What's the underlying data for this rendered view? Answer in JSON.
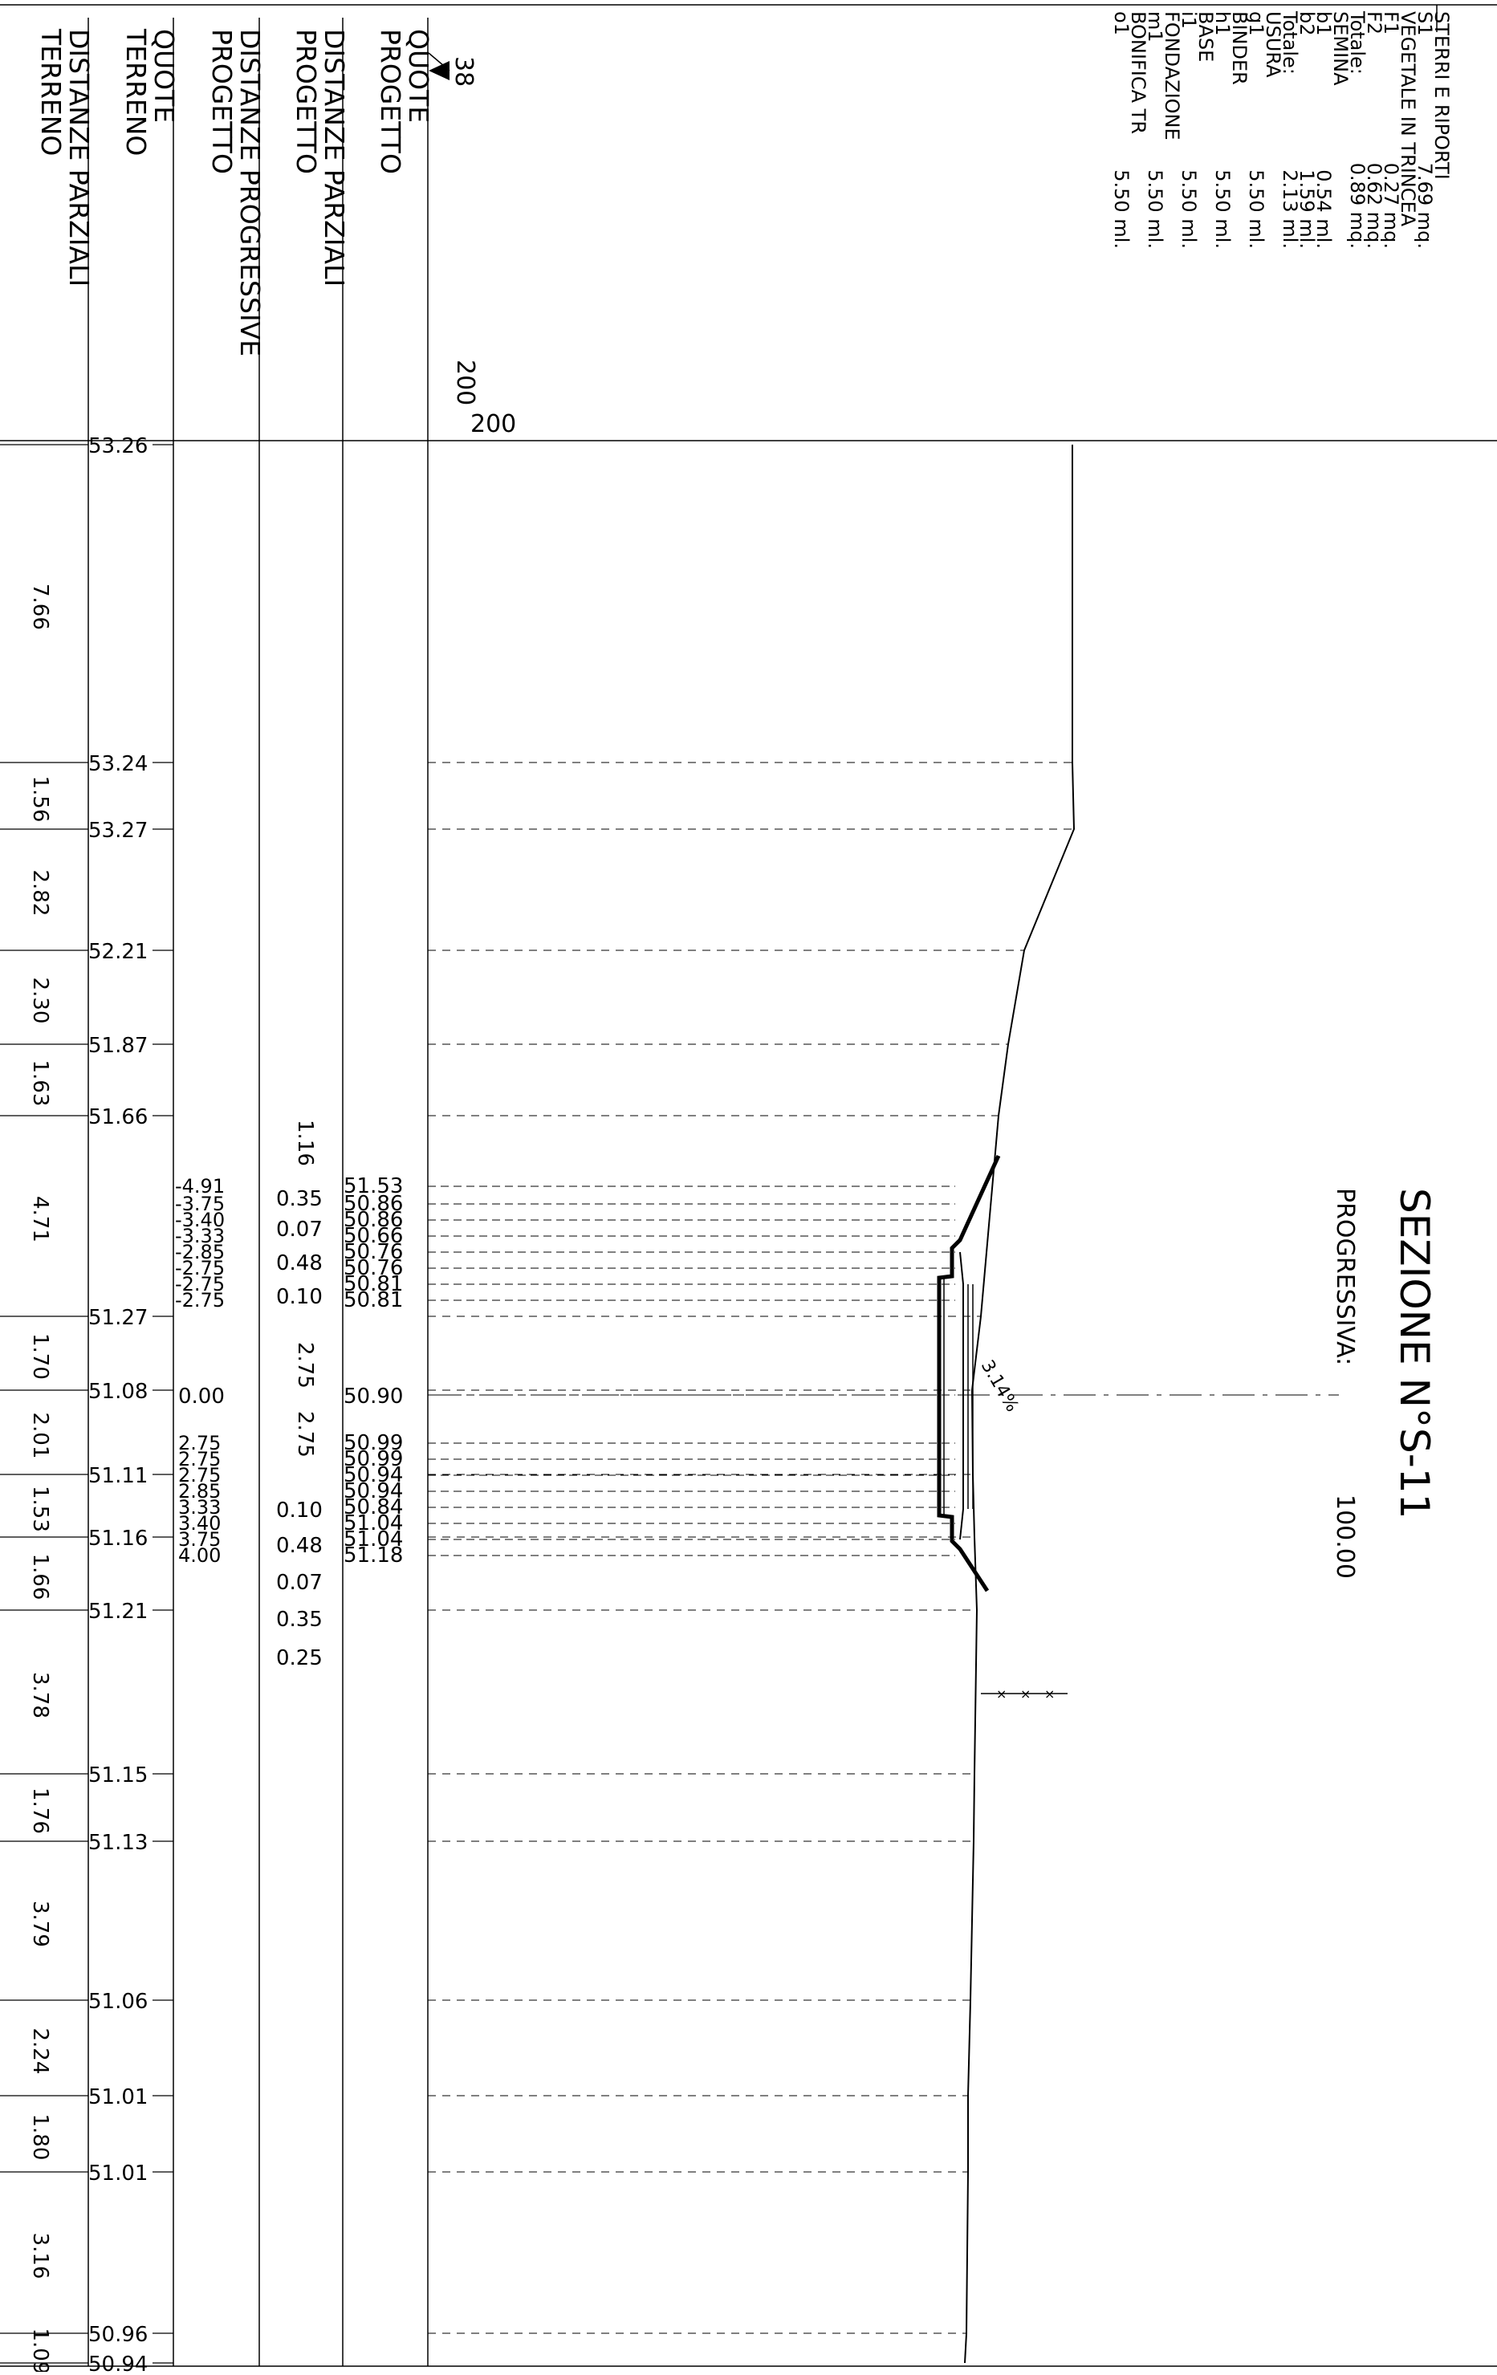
{
  "section": {
    "title": "SEZIONE N°S-11",
    "progressive_label": "PROGRESSIVA:",
    "progressive_value": "100.00",
    "datum_label": "200",
    "scale_mark": "38",
    "slope_label": "3.14%"
  },
  "table_headers": {
    "quote_progetto": [
      "QUOTE",
      "PROGETTO"
    ],
    "distanze_parziali_progetto": [
      "DISTANZE PARZIALI",
      "PROGETTO"
    ],
    "distanze_progressive_progetto": [
      "DISTANZE PROGRESSIVE",
      "PROGETTO"
    ],
    "quote_terreno": [
      "QUOTE",
      "TERRENO"
    ],
    "distanze_parziali_terreno": [
      "DISTANZE PARZIALI",
      "TERRENO"
    ]
  },
  "legend": {
    "lines": [
      {
        "label": "STERRI E RIPORTI",
        "value": ""
      },
      {
        "label": "S1",
        "value": "7.69 mq."
      },
      {
        "label": "VEGETALE IN TRINCEA",
        "value": ""
      },
      {
        "label": "F1",
        "value": "0.27 mq."
      },
      {
        "label": "F2",
        "value": "0.62 mq."
      },
      {
        "label": "Totale:",
        "value": "0.89 mq."
      },
      {
        "label": "SEMINA",
        "value": ""
      },
      {
        "label": "b1",
        "value": "0.54 ml."
      },
      {
        "label": "b2",
        "value": "1.59 ml."
      },
      {
        "label": "Totale:",
        "value": "2.13 ml."
      },
      {
        "label": "USURA",
        "value": ""
      },
      {
        "label": "g1",
        "value": "5.50 ml."
      },
      {
        "label": "BINDER",
        "value": ""
      },
      {
        "label": "h1",
        "value": "5.50 ml."
      },
      {
        "label": "BASE",
        "value": ""
      },
      {
        "label": "i1",
        "value": "5.50 ml."
      },
      {
        "label": "FONDAZIONE",
        "value": ""
      },
      {
        "label": "m1",
        "value": "5.50 ml."
      },
      {
        "label": "BONIFICA TR",
        "value": ""
      },
      {
        "label": "o1",
        "value": "5.50 ml."
      }
    ]
  },
  "terrain": {
    "points": [
      {
        "quota": "53.26",
        "partial_after": "7.66"
      },
      {
        "quota": "53.24",
        "partial_after": "1.56"
      },
      {
        "quota": "53.27",
        "partial_after": "2.82"
      },
      {
        "quota": "52.21",
        "partial_after": "2.30"
      },
      {
        "quota": "51.87",
        "partial_after": "1.63"
      },
      {
        "quota": "51.66",
        "partial_after": "4.71"
      },
      {
        "quota": "51.27",
        "partial_after": "1.70"
      },
      {
        "quota": "51.08",
        "partial_after": "2.01"
      },
      {
        "quota": "51.11",
        "partial_after": "1.53"
      },
      {
        "quota": "51.16",
        "partial_after": "1.66"
      },
      {
        "quota": "51.21",
        "partial_after": "3.78"
      },
      {
        "quota": "51.15",
        "partial_after": "1.76"
      },
      {
        "quota": "51.13",
        "partial_after": "3.79"
      },
      {
        "quota": "51.06",
        "partial_after": "2.24"
      },
      {
        "quota": "51.01",
        "partial_after": "1.80"
      },
      {
        "quota": "51.01",
        "partial_after": "3.16"
      },
      {
        "quota": "50.96",
        "partial_after": "1.09"
      },
      {
        "quota": "50.94",
        "partial_after": ""
      }
    ]
  },
  "project": {
    "progressive_left": [
      "-4.91",
      "-3.75",
      "-3.40",
      "-3.33",
      "-2.85",
      "-2.75",
      "-2.75",
      "-2.75"
    ],
    "progressive_axis": "0.00",
    "progressive_right": [
      "2.75",
      "2.75",
      "2.75",
      "2.85",
      "3.33",
      "3.40",
      "3.75",
      "4.00"
    ],
    "partials_left": [
      "1.16",
      "0.35",
      "0.07",
      "0.48",
      "0.10",
      "2.75"
    ],
    "partials_right": [
      "2.75",
      "0.10",
      "0.48",
      "0.07",
      "0.35",
      "0.25"
    ],
    "quotes_left": [
      "51.53",
      "50.86",
      "50.86",
      "50.66",
      "50.76",
      "50.76",
      "50.81",
      "50.81"
    ],
    "quote_axis": "50.90",
    "quotes_right": [
      "50.99",
      "50.99",
      "50.94",
      "50.94",
      "50.84",
      "51.04",
      "51.04",
      "51.18"
    ]
  }
}
